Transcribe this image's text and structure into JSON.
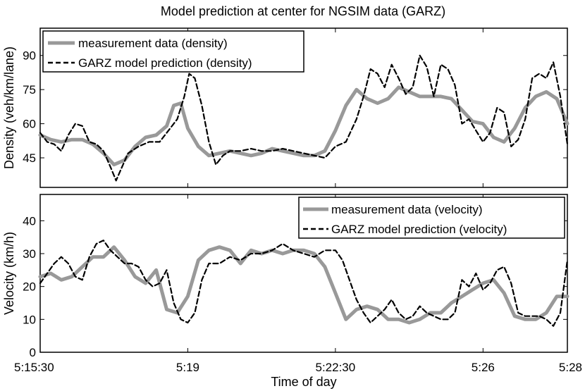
{
  "chart_data": {
    "title": "Model prediction at center for NGSIM data (GARZ)",
    "xlabel": "Time of day",
    "x_ticks": [
      "5:15:30",
      "5:19",
      "5:22:30",
      "5:26",
      "5:28"
    ],
    "x_tick_values": [
      0,
      210,
      420,
      630,
      750
    ],
    "xlim": [
      0,
      750
    ],
    "colors": {
      "measurement": "#999999",
      "prediction": "#000000"
    },
    "panels": [
      {
        "type": "line",
        "ylabel": "Density (veh/km/lane)",
        "ylim": [
          32,
          102
        ],
        "yticks": [
          45,
          60,
          75,
          90
        ],
        "legend_position": "top-left",
        "series": [
          {
            "name": "measurement data (density)",
            "x": [
              0,
              15,
              30,
              45,
              60,
              75,
              90,
              105,
              120,
              135,
              150,
              165,
              180,
              190,
              200,
              210,
              225,
              240,
              255,
              270,
              285,
              300,
              315,
              330,
              345,
              360,
              375,
              390,
              405,
              420,
              435,
              450,
              465,
              480,
              495,
              510,
              525,
              540,
              555,
              570,
              585,
              600,
              615,
              630,
              645,
              660,
              675,
              690,
              705,
              720,
              735,
              750
            ],
            "y": [
              55,
              53,
              52,
              53,
              53,
              51,
              47,
              42,
              44,
              50,
              54,
              55,
              59,
              68,
              69,
              58,
              50,
              46,
              47,
              48,
              47,
              46,
              47,
              49,
              48,
              47,
              46,
              46,
              48,
              57,
              68,
              75,
              71,
              69,
              71,
              76,
              74,
              72,
              72,
              72,
              71,
              66,
              61,
              60,
              54,
              52,
              58,
              67,
              72,
              74,
              71,
              60
            ]
          },
          {
            "name": "GARZ model prediction (density)",
            "x": [
              0,
              10,
              20,
              30,
              40,
              50,
              60,
              70,
              80,
              90,
              100,
              108,
              115,
              125,
              140,
              155,
              170,
              185,
              195,
              205,
              212,
              220,
              230,
              240,
              250,
              260,
              270,
              285,
              300,
              315,
              330,
              345,
              360,
              375,
              390,
              405,
              420,
              435,
              450,
              460,
              470,
              480,
              490,
              500,
              510,
              520,
              530,
              540,
              550,
              560,
              570,
              580,
              590,
              600,
              610,
              620,
              630,
              640,
              650,
              660,
              670,
              680,
              690,
              700,
              710,
              720,
              730,
              740,
              750
            ],
            "y": [
              56,
              52,
              51,
              48,
              55,
              60,
              59,
              52,
              51,
              48,
              41,
              35,
              40,
              47,
              50,
              52,
              52,
              58,
              62,
              72,
              82,
              80,
              68,
              52,
              42,
              46,
              48,
              48,
              49,
              48,
              48,
              49,
              48,
              47,
              46,
              45,
              50,
              52,
              62,
              72,
              84,
              82,
              76,
              86,
              80,
              73,
              76,
              90,
              85,
              72,
              86,
              84,
              77,
              60,
              62,
              57,
              52,
              56,
              67,
              65,
              50,
              53,
              62,
              80,
              82,
              80,
              87,
              72,
              51
            ]
          }
        ]
      },
      {
        "type": "line",
        "ylabel": "Velocity (km/h)",
        "ylim": [
          0,
          48
        ],
        "yticks": [
          0,
          10,
          20,
          30,
          40
        ],
        "legend_position": "top-right",
        "series": [
          {
            "name": "measurement data (velocity)",
            "x": [
              0,
              15,
              30,
              45,
              60,
              75,
              90,
              105,
              120,
              135,
              150,
              165,
              180,
              195,
              210,
              225,
              240,
              255,
              270,
              285,
              300,
              315,
              330,
              345,
              360,
              375,
              390,
              405,
              420,
              435,
              450,
              465,
              480,
              495,
              510,
              525,
              540,
              555,
              570,
              585,
              600,
              615,
              630,
              645,
              660,
              675,
              690,
              705,
              720,
              735,
              750
            ],
            "y": [
              23,
              24,
              22,
              23,
              26,
              29,
              29,
              32,
              28,
              23,
              21,
              25,
              13,
              12,
              17,
              28,
              31,
              32,
              31,
              27,
              31,
              30,
              31,
              30,
              31,
              31,
              30,
              26,
              18,
              10,
              13,
              14,
              13,
              10,
              10,
              9,
              10,
              12,
              12,
              15,
              17,
              19,
              21,
              22,
              18,
              11,
              10,
              10,
              12,
              17,
              17
            ]
          },
          {
            "name": "GARZ model prediction (velocity)",
            "x": [
              0,
              10,
              20,
              30,
              40,
              50,
              60,
              70,
              80,
              90,
              100,
              110,
              120,
              130,
              140,
              150,
              160,
              170,
              180,
              190,
              200,
              210,
              220,
              230,
              240,
              255,
              270,
              285,
              300,
              315,
              330,
              345,
              360,
              375,
              390,
              405,
              420,
              430,
              440,
              450,
              460,
              470,
              480,
              490,
              500,
              510,
              520,
              530,
              540,
              550,
              560,
              570,
              580,
              590,
              600,
              610,
              620,
              630,
              640,
              650,
              660,
              670,
              680,
              690,
              700,
              710,
              720,
              730,
              740,
              750
            ],
            "y": [
              21,
              24,
              27,
              29,
              27,
              23,
              22,
              29,
              33,
              34,
              31,
              29,
              27,
              27,
              26,
              22,
              20,
              21,
              25,
              15,
              10,
              9,
              12,
              22,
              27,
              27,
              29,
              28,
              30,
              30,
              31,
              33,
              31,
              30,
              29,
              31,
              31,
              28,
              22,
              16,
              12,
              9,
              11,
              13,
              16,
              12,
              10,
              11,
              14,
              12,
              11,
              10,
              10,
              12,
              22,
              20,
              24,
              19,
              21,
              25,
              26,
              21,
              12,
              11,
              11,
              11,
              10,
              8,
              12,
              28
            ]
          }
        ]
      }
    ]
  }
}
